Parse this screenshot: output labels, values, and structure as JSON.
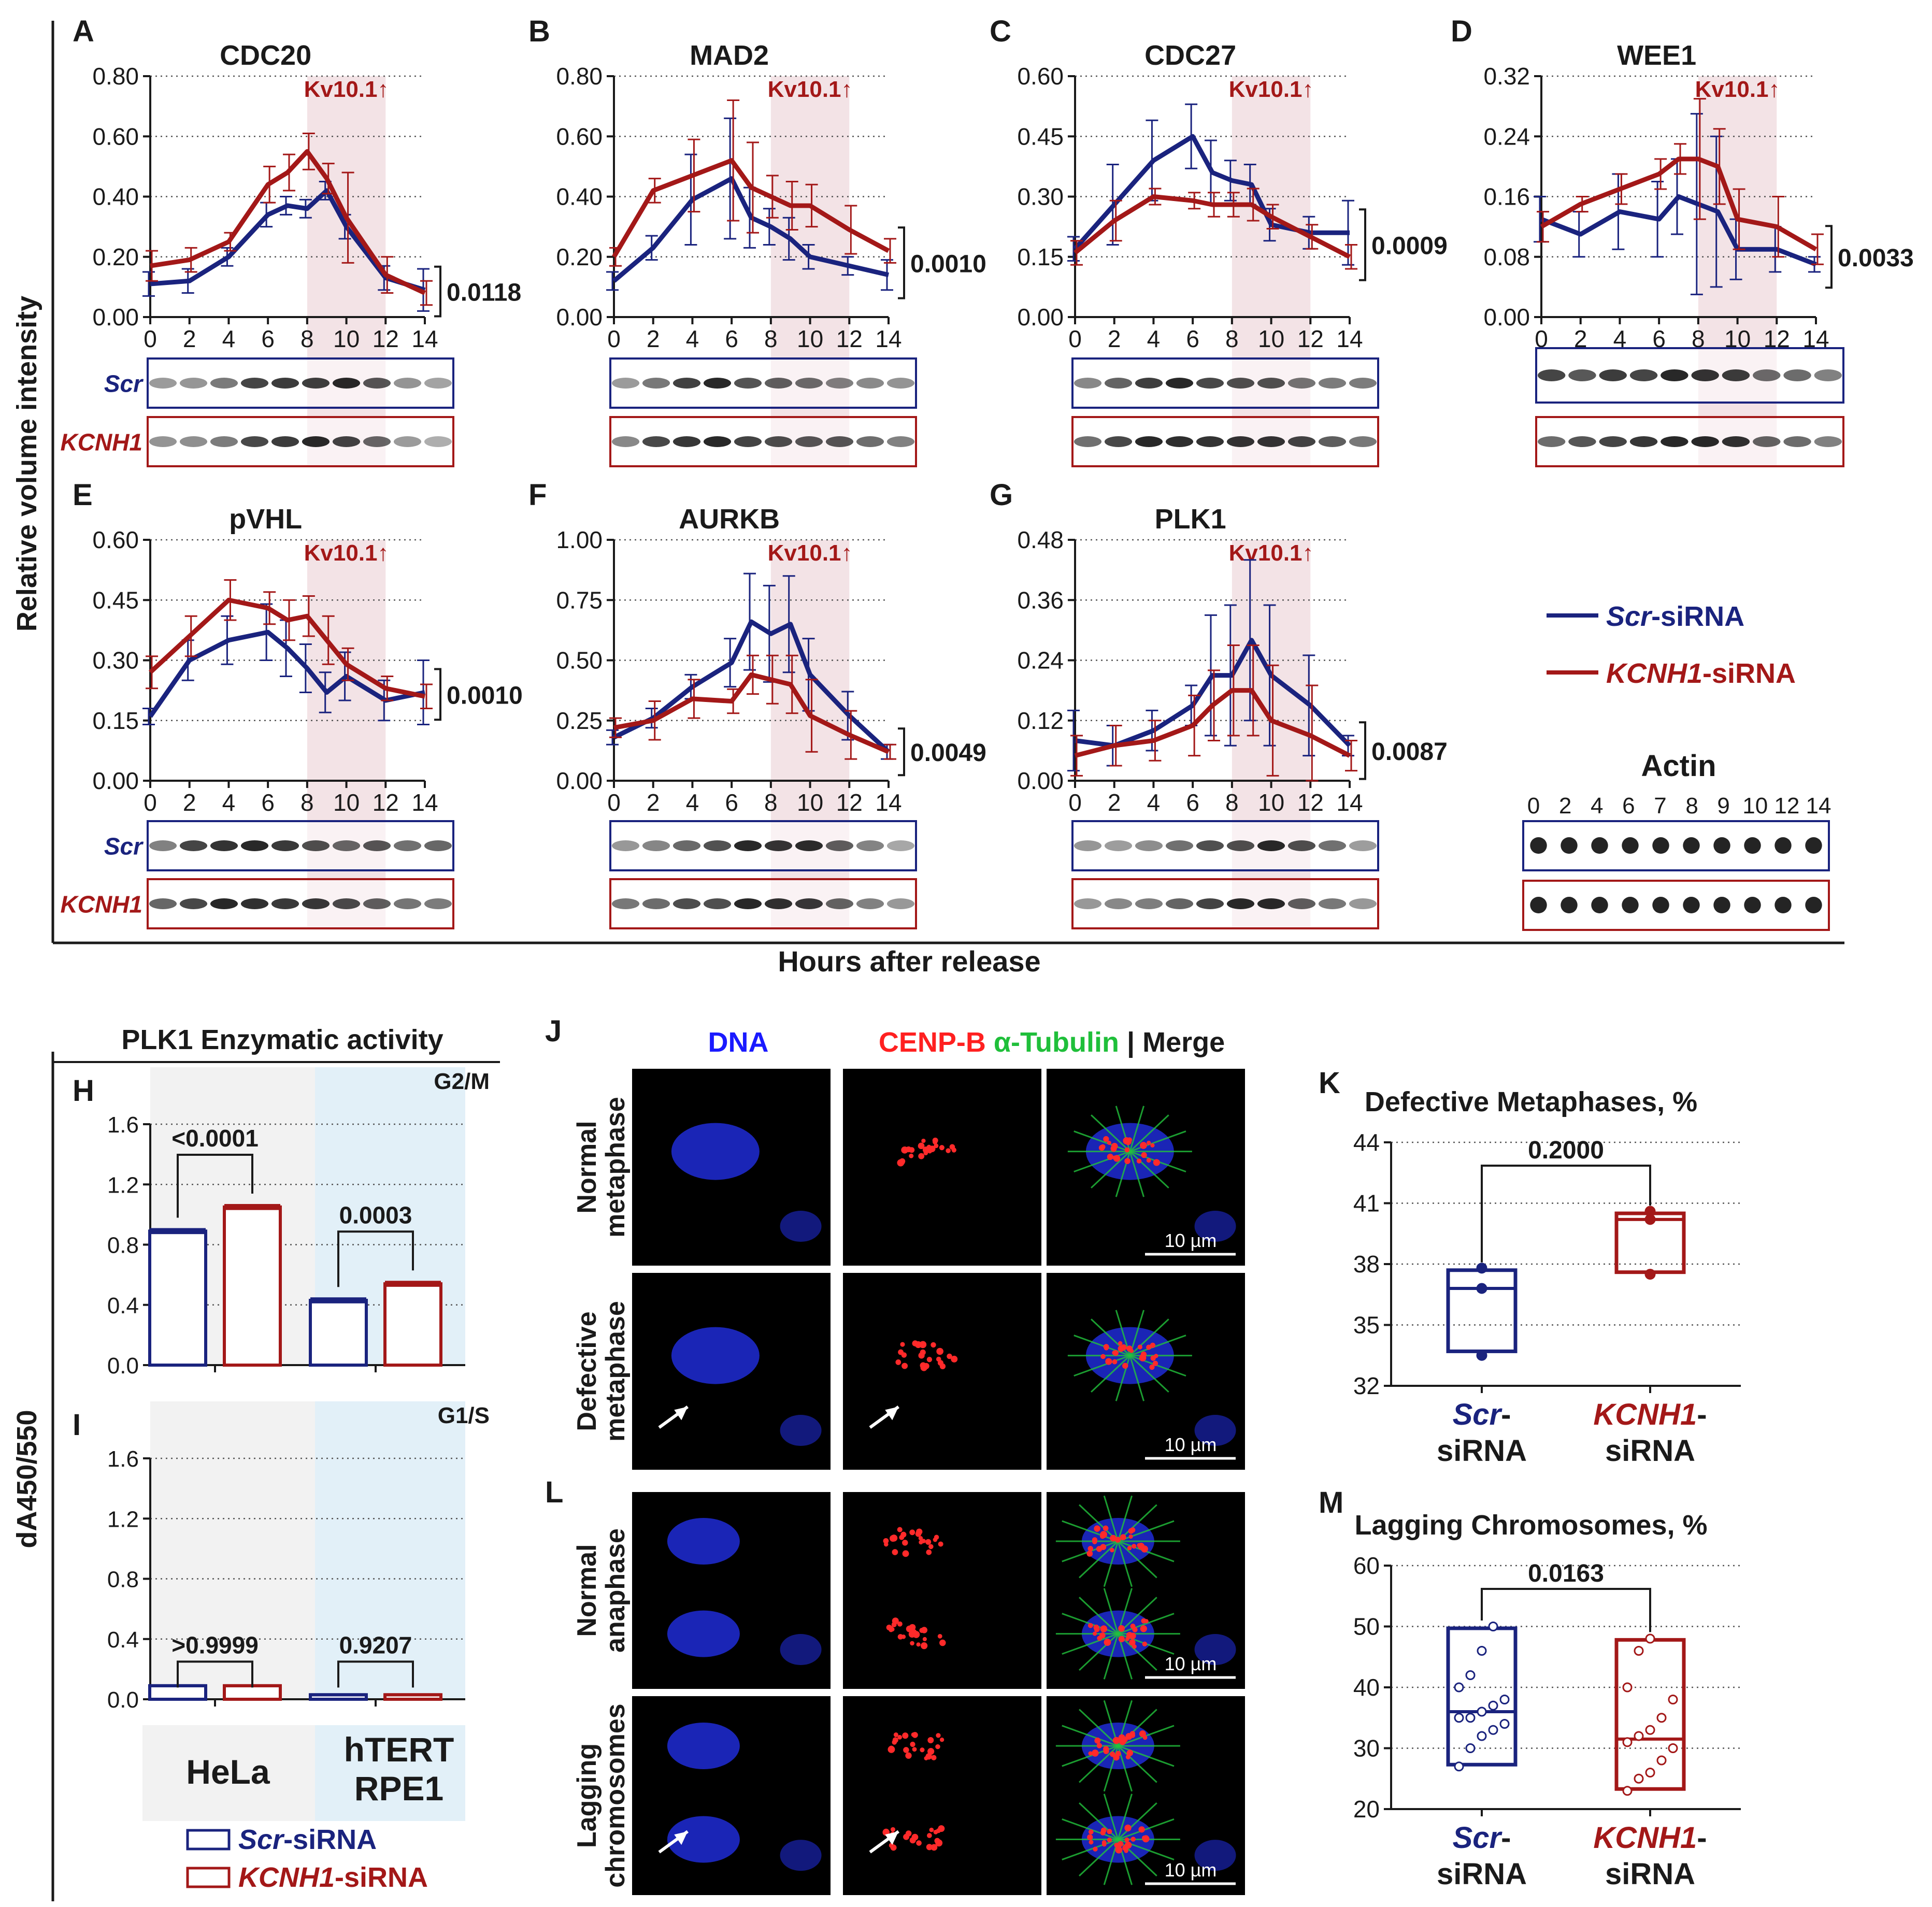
{
  "figure": {
    "y_title_top": "Relative volume intensity",
    "x_title_top": "Hours after release",
    "y_title_bottom": "dA450/550",
    "kv_label": "Kv10.1",
    "kv_arrow": "↑",
    "row_labels": [
      "Scr",
      "KCNH1"
    ],
    "legend": [
      {
        "italic": "Scr",
        "rest": "-siRNA",
        "color": "#1a237e"
      },
      {
        "italic": "KCNH1",
        "rest": "-siRNA",
        "color": "#a31818"
      }
    ],
    "actin": {
      "title": "Actin",
      "ticks": [
        "0",
        "2",
        "4",
        "6",
        "7",
        "8",
        "9",
        "10",
        "12",
        "14"
      ]
    },
    "colors": {
      "scr": "#1a237e",
      "kcnh1": "#a31818",
      "shade": "#f3e3e6",
      "hela_bg": "#f2f2f2",
      "rpe_bg": "#e2f0f8",
      "black": "#1a1a1a"
    }
  },
  "chart_data": [
    {
      "type": "line",
      "letter": "A",
      "title": "CDC20",
      "pvalue": "0.0118",
      "ylim": [
        0,
        0.8
      ],
      "yticks": [
        "0.00",
        "0.20",
        "0.40",
        "0.60",
        "0.80"
      ],
      "x": [
        0,
        2,
        4,
        6,
        7,
        8,
        9,
        10,
        12,
        14
      ],
      "xticks": [
        "0",
        "2",
        "4",
        "6",
        "8",
        "10",
        "12",
        "14"
      ],
      "shade_range": [
        8,
        12
      ],
      "xlabel": "Hours after release",
      "ylabel": "Relative volume intensity",
      "series": [
        {
          "name": "Scr-siRNA",
          "values": [
            0.11,
            0.12,
            0.2,
            0.34,
            0.37,
            0.36,
            0.42,
            0.3,
            0.13,
            0.09
          ],
          "err": [
            0.04,
            0.04,
            0.03,
            0.04,
            0.03,
            0.03,
            0.03,
            0.04,
            0.04,
            0.07
          ]
        },
        {
          "name": "KCNH1-siRNA",
          "values": [
            0.17,
            0.19,
            0.25,
            0.44,
            0.48,
            0.55,
            0.46,
            0.33,
            0.14,
            0.08
          ],
          "err": [
            0.05,
            0.04,
            0.03,
            0.06,
            0.06,
            0.06,
            0.05,
            0.15,
            0.06,
            0.04
          ]
        }
      ]
    },
    {
      "type": "line",
      "letter": "B",
      "title": "MAD2",
      "pvalue": "0.0010",
      "ylim": [
        0,
        0.8
      ],
      "yticks": [
        "0.00",
        "0.20",
        "0.40",
        "0.60",
        "0.80"
      ],
      "x": [
        0,
        2,
        4,
        6,
        7,
        8,
        9,
        10,
        12,
        14
      ],
      "xticks": [
        "0",
        "2",
        "4",
        "6",
        "8",
        "10",
        "12",
        "14"
      ],
      "shade_range": [
        8,
        12
      ],
      "xlabel": "Hours after release",
      "ylabel": "Relative volume intensity",
      "series": [
        {
          "name": "Scr-siRNA",
          "values": [
            0.12,
            0.23,
            0.39,
            0.46,
            0.33,
            0.3,
            0.26,
            0.2,
            0.17,
            0.14
          ],
          "err": [
            0.03,
            0.04,
            0.15,
            0.2,
            0.1,
            0.06,
            0.07,
            0.04,
            0.03,
            0.05
          ]
        },
        {
          "name": "KCNH1-siRNA",
          "values": [
            0.2,
            0.42,
            0.47,
            0.52,
            0.43,
            0.4,
            0.37,
            0.37,
            0.29,
            0.22
          ],
          "err": [
            0.03,
            0.04,
            0.12,
            0.2,
            0.15,
            0.07,
            0.08,
            0.07,
            0.08,
            0.04
          ]
        }
      ]
    },
    {
      "type": "line",
      "letter": "C",
      "title": "CDC27",
      "pvalue": "0.0009",
      "ylim": [
        0,
        0.6
      ],
      "yticks": [
        "0.00",
        "0.15",
        "0.30",
        "0.45",
        "0.60"
      ],
      "x": [
        0,
        2,
        4,
        6,
        7,
        8,
        9,
        10,
        12,
        14
      ],
      "xticks": [
        "0",
        "2",
        "4",
        "6",
        "8",
        "10",
        "12",
        "14"
      ],
      "shade_range": [
        8,
        12
      ],
      "xlabel": "Hours after release",
      "ylabel": "Relative volume intensity",
      "series": [
        {
          "name": "Scr-siRNA",
          "values": [
            0.17,
            0.28,
            0.39,
            0.45,
            0.36,
            0.34,
            0.33,
            0.23,
            0.21,
            0.21
          ],
          "err": [
            0.03,
            0.1,
            0.1,
            0.08,
            0.08,
            0.05,
            0.05,
            0.04,
            0.04,
            0.08
          ]
        },
        {
          "name": "KCNH1-siRNA",
          "values": [
            0.16,
            0.24,
            0.3,
            0.29,
            0.28,
            0.28,
            0.28,
            0.25,
            0.2,
            0.15
          ],
          "err": [
            0.03,
            0.05,
            0.02,
            0.02,
            0.03,
            0.03,
            0.04,
            0.03,
            0.03,
            0.03
          ]
        }
      ]
    },
    {
      "type": "line",
      "letter": "D",
      "title": "WEE1",
      "pvalue": "0.0033",
      "ylim": [
        0,
        0.32
      ],
      "yticks": [
        "0.00",
        "0.08",
        "0.16",
        "0.24",
        "0.32"
      ],
      "x": [
        0,
        2,
        4,
        6,
        7,
        8,
        9,
        10,
        12,
        14
      ],
      "xticks": [
        "0",
        "2",
        "4",
        "6",
        "8",
        "10",
        "12",
        "14"
      ],
      "shade_range": [
        8,
        12
      ],
      "xlabel": "Hours after release",
      "ylabel": "Relative volume intensity",
      "series": [
        {
          "name": "Scr-siRNA",
          "values": [
            0.13,
            0.11,
            0.14,
            0.13,
            0.16,
            0.15,
            0.14,
            0.09,
            0.09,
            0.07
          ],
          "err": [
            0.03,
            0.03,
            0.05,
            0.05,
            0.05,
            0.12,
            0.1,
            0.04,
            0.03,
            0.01
          ]
        },
        {
          "name": "KCNH1-siRNA",
          "values": [
            0.12,
            0.15,
            0.17,
            0.19,
            0.21,
            0.21,
            0.2,
            0.13,
            0.12,
            0.09
          ],
          "err": [
            0.02,
            0.01,
            0.02,
            0.02,
            0.02,
            0.08,
            0.05,
            0.04,
            0.04,
            0.02
          ]
        }
      ]
    },
    {
      "type": "line",
      "letter": "E",
      "title": "pVHL",
      "pvalue": "0.0010",
      "ylim": [
        0,
        0.6
      ],
      "yticks": [
        "0.00",
        "0.15",
        "0.30",
        "0.45",
        "0.60"
      ],
      "x": [
        0,
        2,
        4,
        6,
        7,
        8,
        9,
        10,
        12,
        14
      ],
      "xticks": [
        "0",
        "2",
        "4",
        "6",
        "8",
        "10",
        "12",
        "14"
      ],
      "shade_range": [
        8,
        12
      ],
      "xlabel": "Hours after release",
      "ylabel": "Relative volume intensity",
      "series": [
        {
          "name": "Scr-siRNA",
          "values": [
            0.16,
            0.3,
            0.35,
            0.37,
            0.33,
            0.28,
            0.22,
            0.26,
            0.2,
            0.22
          ],
          "err": [
            0.02,
            0.05,
            0.06,
            0.07,
            0.07,
            0.06,
            0.05,
            0.06,
            0.05,
            0.08
          ]
        },
        {
          "name": "KCNH1-siRNA",
          "values": [
            0.27,
            0.36,
            0.45,
            0.43,
            0.4,
            0.41,
            0.35,
            0.29,
            0.23,
            0.21
          ],
          "err": [
            0.04,
            0.05,
            0.05,
            0.04,
            0.05,
            0.05,
            0.06,
            0.04,
            0.03,
            0.03
          ]
        }
      ]
    },
    {
      "type": "line",
      "letter": "F",
      "title": "AURKB",
      "pvalue": "0.0049",
      "ylim": [
        0,
        1.0
      ],
      "yticks": [
        "0.00",
        "0.25",
        "0.50",
        "0.75",
        "1.00"
      ],
      "x": [
        0,
        2,
        4,
        6,
        7,
        8,
        9,
        10,
        12,
        14
      ],
      "xticks": [
        "0",
        "2",
        "4",
        "6",
        "8",
        "10",
        "12",
        "14"
      ],
      "shade_range": [
        8,
        12
      ],
      "xlabel": "Hours after release",
      "ylabel": "Relative volume intensity",
      "series": [
        {
          "name": "Scr-siRNA",
          "values": [
            0.18,
            0.26,
            0.39,
            0.49,
            0.66,
            0.61,
            0.65,
            0.44,
            0.27,
            0.12
          ],
          "err": [
            0.03,
            0.04,
            0.05,
            0.1,
            0.2,
            0.2,
            0.2,
            0.15,
            0.1,
            0.03
          ]
        },
        {
          "name": "KCNH1-siRNA",
          "values": [
            0.22,
            0.25,
            0.34,
            0.33,
            0.44,
            0.42,
            0.4,
            0.27,
            0.19,
            0.12
          ],
          "err": [
            0.04,
            0.08,
            0.08,
            0.05,
            0.08,
            0.1,
            0.12,
            0.15,
            0.1,
            0.03
          ]
        }
      ]
    },
    {
      "type": "line",
      "letter": "G",
      "title": "PLK1",
      "pvalue": "0.0087",
      "ylim": [
        0,
        0.48
      ],
      "yticks": [
        "0.00",
        "0.12",
        "0.24",
        "0.36",
        "0.48"
      ],
      "x": [
        0,
        2,
        4,
        6,
        7,
        8,
        9,
        10,
        12,
        14
      ],
      "xticks": [
        "0",
        "2",
        "4",
        "6",
        "8",
        "10",
        "12",
        "14"
      ],
      "shade_range": [
        8,
        12
      ],
      "xlabel": "Hours after release",
      "ylabel": "Relative volume intensity",
      "series": [
        {
          "name": "Scr-siRNA",
          "values": [
            0.08,
            0.07,
            0.1,
            0.15,
            0.21,
            0.21,
            0.28,
            0.21,
            0.15,
            0.07
          ],
          "err": [
            0.06,
            0.04,
            0.04,
            0.04,
            0.12,
            0.14,
            0.16,
            0.14,
            0.1,
            0.02
          ]
        },
        {
          "name": "KCNH1-siRNA",
          "values": [
            0.05,
            0.07,
            0.08,
            0.11,
            0.15,
            0.18,
            0.18,
            0.12,
            0.09,
            0.05
          ],
          "err": [
            0.04,
            0.04,
            0.04,
            0.06,
            0.07,
            0.09,
            0.09,
            0.11,
            0.1,
            0.03
          ]
        }
      ]
    },
    {
      "type": "bar",
      "letter": "H",
      "corner": "G2/M",
      "title": "PLK1 Enzymatic activity",
      "ylim": [
        0,
        1.6
      ],
      "yticks": [
        "0.0",
        "0.4",
        "0.8",
        "1.2",
        "1.6"
      ],
      "groups": [
        "HeLa",
        "hTERT RPE1"
      ],
      "series": [
        {
          "name": "Scr-siRNA",
          "values": [
            0.89,
            0.43
          ],
          "err": [
            0.02,
            0.02
          ]
        },
        {
          "name": "KCNH1-siRNA",
          "values": [
            1.05,
            0.54
          ],
          "err": [
            0.02,
            0.02
          ]
        }
      ],
      "pvalues": [
        "<0.0001",
        "0.0003"
      ]
    },
    {
      "type": "bar",
      "letter": "I",
      "corner": "G1/S",
      "ylim": [
        0,
        1.6
      ],
      "yticks": [
        "0.0",
        "0.4",
        "0.8",
        "1.2",
        "1.6"
      ],
      "groups": [
        "HeLa",
        "hTERT RPE1"
      ],
      "group_labels": [
        [
          "HeLa"
        ],
        [
          "hTERT",
          "RPE1"
        ]
      ],
      "series": [
        {
          "name": "Scr-siRNA",
          "values": [
            0.09,
            0.03
          ],
          "err": [
            0.01,
            0.01
          ]
        },
        {
          "name": "KCNH1-siRNA",
          "values": [
            0.09,
            0.03
          ],
          "err": [
            0.01,
            0.01
          ]
        }
      ],
      "pvalues": [
        ">0.9999",
        "0.9207"
      ]
    },
    {
      "type": "box",
      "letter": "K",
      "title": "Defective Metaphases, %",
      "ylim": [
        32,
        44
      ],
      "yticks": [
        "32",
        "35",
        "38",
        "41",
        "44"
      ],
      "categories": [
        [
          "Scr",
          "-",
          "siRNA"
        ],
        [
          "KCNH1",
          "-",
          "siRNA"
        ]
      ],
      "boxes": [
        {
          "name": "Scr-siRNA",
          "q1": 33.7,
          "median": 36.8,
          "q3": 37.7,
          "points": [
            33.5,
            36.8,
            37.8
          ]
        },
        {
          "name": "KCNH1-siRNA",
          "q1": 37.6,
          "median": 40.2,
          "q3": 40.5,
          "points": [
            37.5,
            40.2,
            40.6
          ]
        }
      ],
      "pvalue": "0.2000"
    },
    {
      "type": "box",
      "letter": "M",
      "title": "Lagging Chromosomes, %",
      "ylim": [
        20,
        60
      ],
      "yticks": [
        "20",
        "30",
        "40",
        "50",
        "60"
      ],
      "categories": [
        [
          "Scr",
          "-",
          "siRNA"
        ],
        [
          "KCNH1",
          "-",
          "siRNA"
        ]
      ],
      "boxes": [
        {
          "name": "Scr-siRNA",
          "q1": 27.3,
          "median": 36.0,
          "q3": 49.7,
          "points": [
            27,
            30,
            32,
            33,
            34,
            35,
            35,
            36,
            37,
            38,
            40,
            42,
            46,
            50
          ]
        },
        {
          "name": "KCNH1-siRNA",
          "q1": 23.3,
          "median": 31.5,
          "q3": 47.8,
          "points": [
            23,
            25,
            26,
            28,
            30,
            31,
            32,
            33,
            35,
            38,
            40,
            46,
            48
          ]
        }
      ],
      "pvalue": "0.0163"
    }
  ],
  "microscopy": {
    "letters": [
      "J",
      "L"
    ],
    "channel_headers": {
      "dna": "DNA",
      "cenpb": "CENP-B",
      "tubulin": "α-Tubulin",
      "sep": "|",
      "merge": "Merge"
    },
    "row_labels_j": [
      [
        "Normal",
        "metaphase"
      ],
      [
        "Defective",
        "metaphase"
      ]
    ],
    "row_labels_l": [
      [
        "Normal",
        "anaphase"
      ],
      [
        "Lagging",
        "chromosomes"
      ]
    ],
    "scale_bar": "10 µm"
  }
}
